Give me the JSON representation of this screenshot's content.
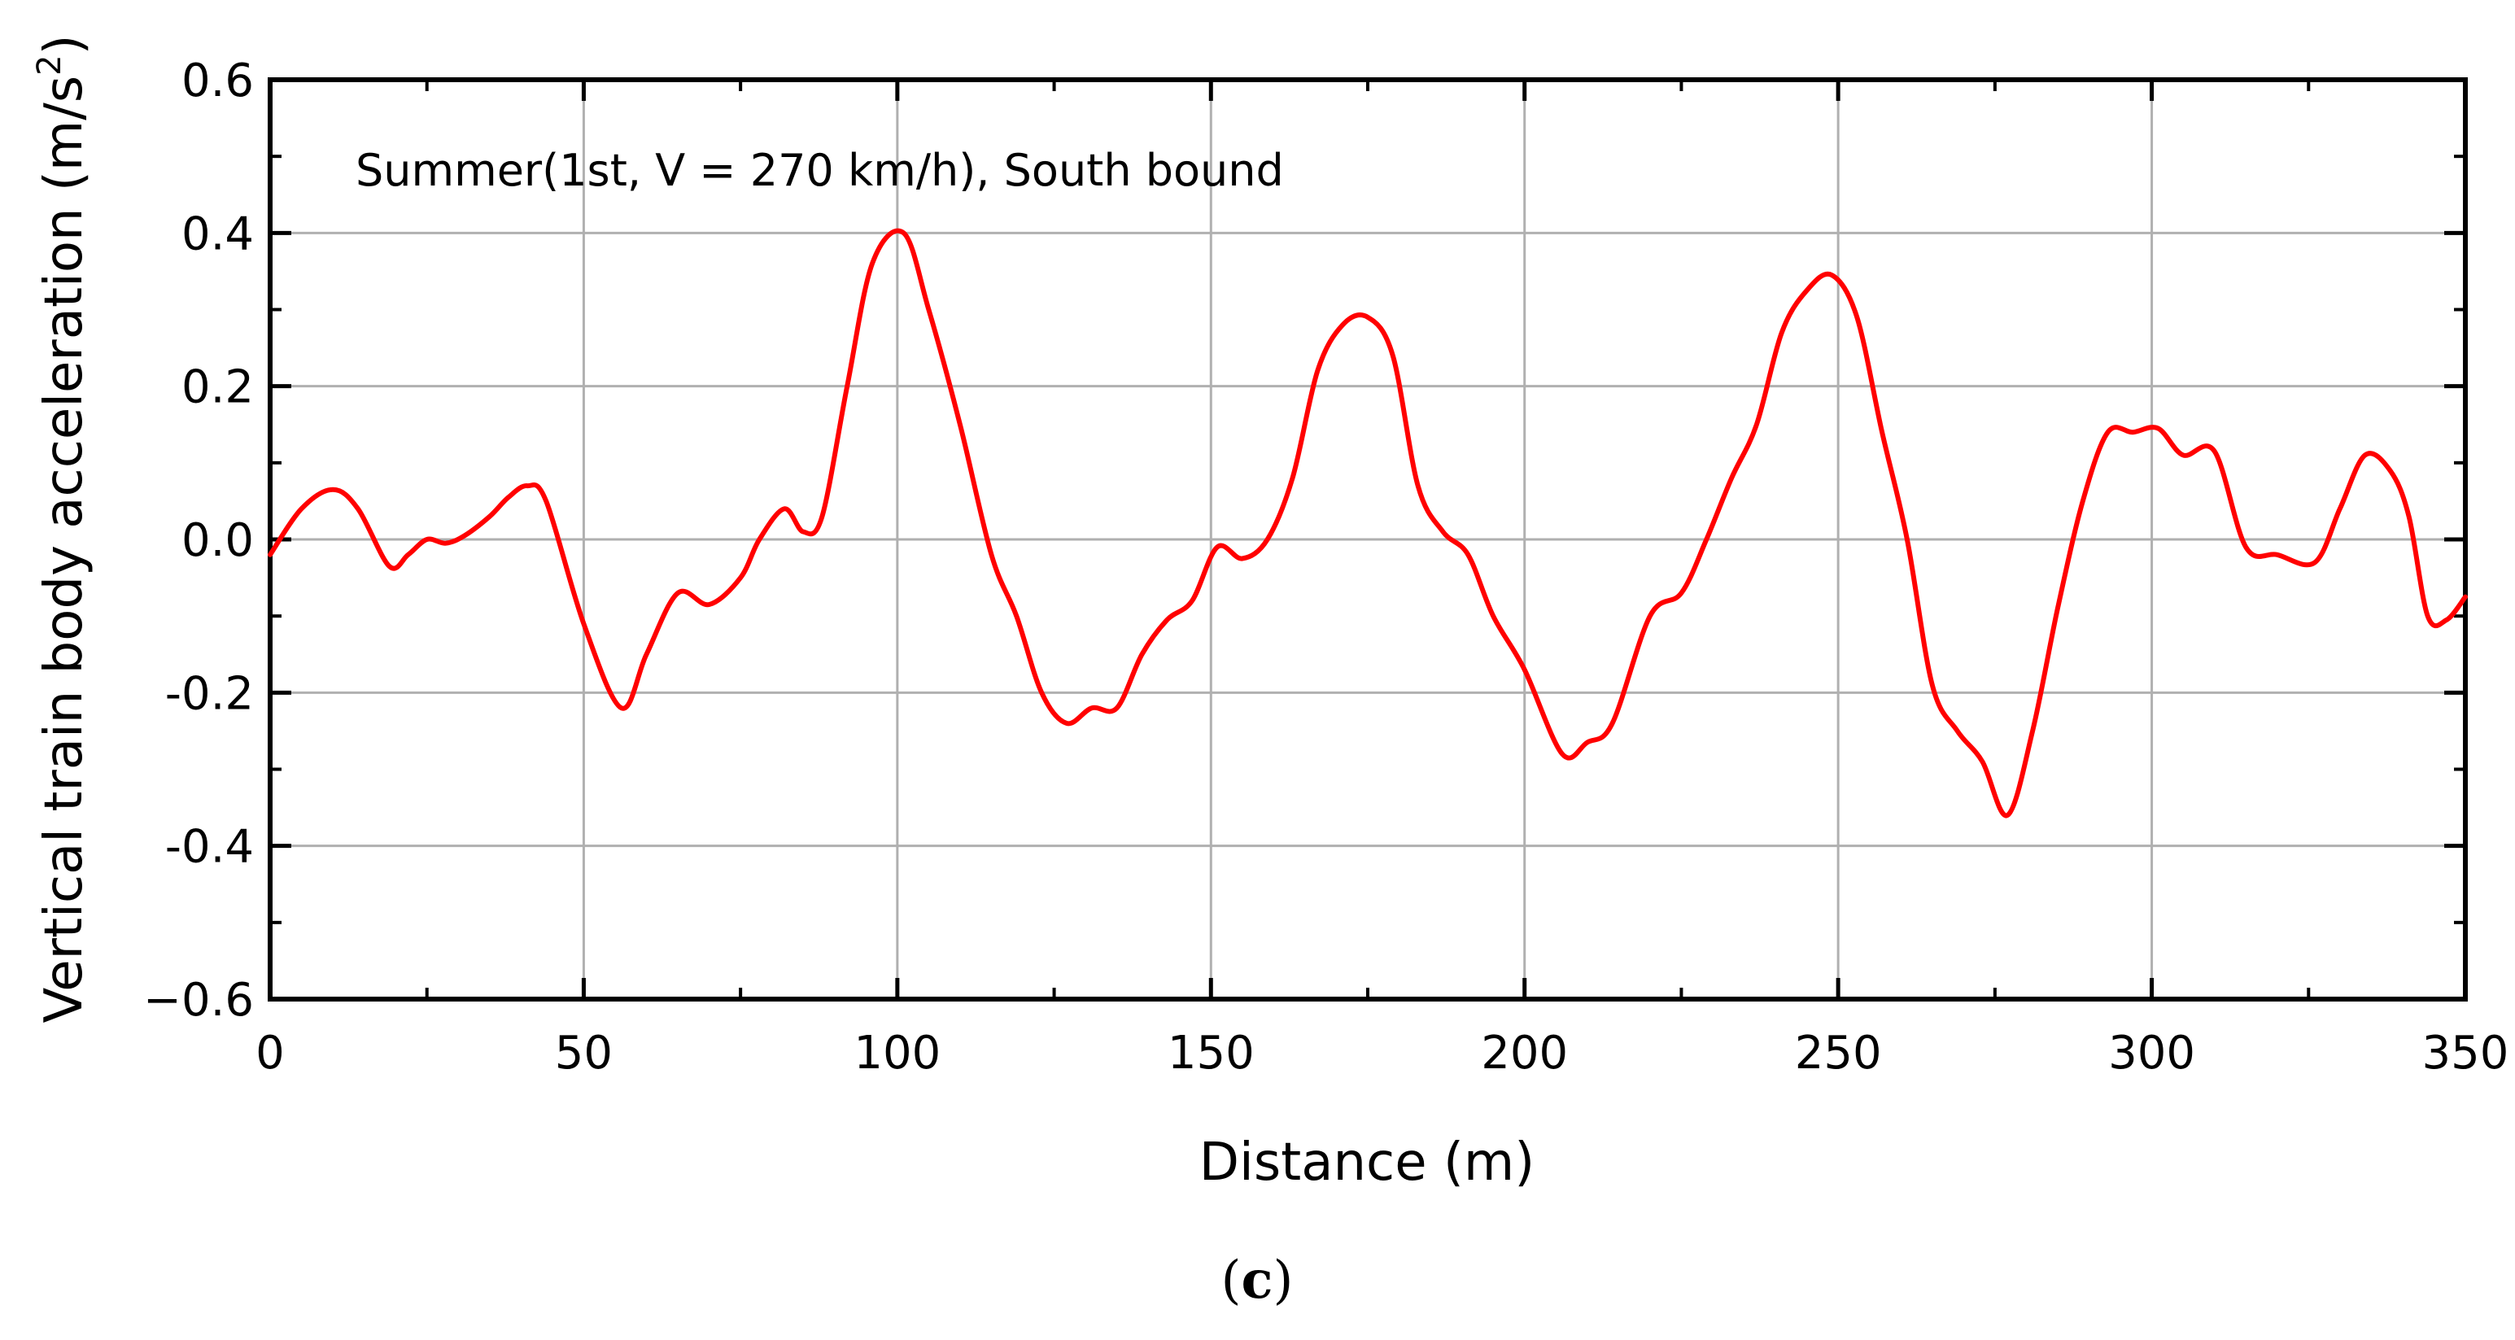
{
  "chart_data": {
    "type": "line",
    "annotation": "Summer(1st, V = 270 km/h), South bound",
    "xlabel": "Distance (m)",
    "ylabel": "Vertical train body acceleration (m/s",
    "ylabel_superscript": "2",
    "ylabel_close": ")",
    "caption_open": "(",
    "caption_letter": "c",
    "caption_close": ")",
    "xlim": [
      0,
      350
    ],
    "ylim": [
      -0.6,
      0.6
    ],
    "xticks": [
      0,
      50,
      100,
      150,
      200,
      250,
      300,
      350
    ],
    "xtick_labels": [
      "0",
      "50",
      "100",
      "150",
      "200",
      "250",
      "300",
      "350"
    ],
    "yticks": [
      -0.6,
      -0.4,
      -0.2,
      0.0,
      0.2,
      0.4,
      0.6
    ],
    "ytick_labels": [
      "−0.6",
      "-0.4",
      "-0.2",
      "0.0",
      "0.2",
      "0.4",
      "0.6"
    ],
    "grid": true,
    "line_color": "#ff0000",
    "series": [
      {
        "name": "Summer(1st, V = 270 km/h), South bound",
        "x": [
          0,
          5,
          10,
          14,
          19,
          22,
          25,
          28,
          31,
          35,
          38,
          41,
          44,
          50,
          56,
          60,
          65,
          70,
          75,
          78,
          82,
          85,
          88,
          92,
          96,
          101,
          105,
          110,
          115,
          119,
          123,
          127,
          131,
          135,
          139,
          143,
          147,
          151,
          155,
          159,
          163,
          167,
          171,
          175,
          179,
          183,
          187,
          191,
          195,
          200,
          206,
          210,
          214,
          220,
          225,
          229,
          233,
          237,
          241,
          245,
          249,
          253,
          257,
          261,
          265,
          269,
          273,
          277,
          281,
          285,
          289,
          293,
          297,
          301,
          305,
          310,
          315,
          320,
          326,
          330,
          334,
          338,
          341,
          344,
          347,
          350
        ],
        "y": [
          -0.02,
          0.04,
          0.065,
          0.04,
          -0.035,
          -0.02,
          0.0,
          -0.005,
          0.005,
          0.03,
          0.055,
          0.07,
          0.05,
          -0.11,
          -0.22,
          -0.15,
          -0.07,
          -0.085,
          -0.05,
          0.0,
          0.04,
          0.01,
          0.03,
          0.2,
          0.36,
          0.4,
          0.3,
          0.15,
          -0.02,
          -0.1,
          -0.2,
          -0.24,
          -0.22,
          -0.22,
          -0.15,
          -0.105,
          -0.08,
          -0.01,
          -0.025,
          0.0,
          0.08,
          0.22,
          0.28,
          0.29,
          0.24,
          0.07,
          0.01,
          -0.02,
          -0.1,
          -0.17,
          -0.28,
          -0.265,
          -0.24,
          -0.1,
          -0.07,
          0.0,
          0.08,
          0.15,
          0.27,
          0.325,
          0.345,
          0.29,
          0.14,
          0.0,
          -0.19,
          -0.25,
          -0.29,
          -0.36,
          -0.25,
          -0.09,
          0.05,
          0.14,
          0.14,
          0.145,
          0.11,
          0.115,
          -0.01,
          -0.02,
          -0.03,
          0.04,
          0.11,
          0.09,
          0.03,
          -0.1,
          -0.105,
          -0.075
        ]
      }
    ]
  }
}
